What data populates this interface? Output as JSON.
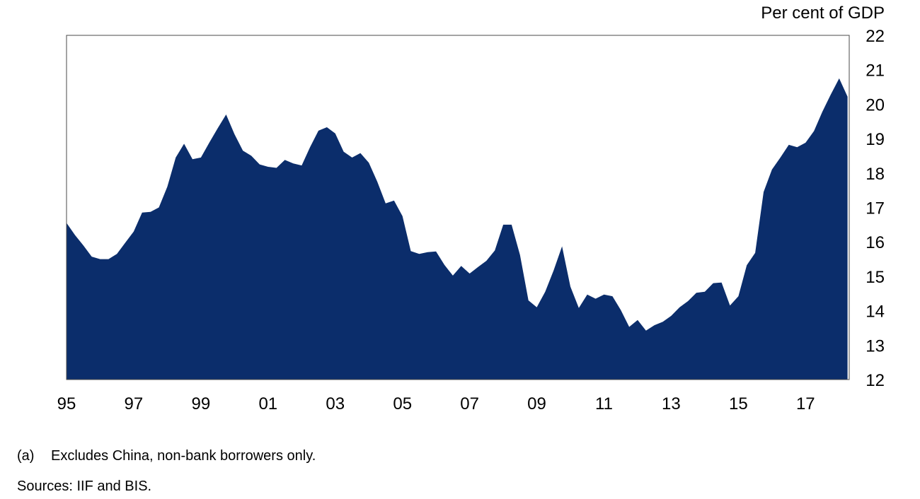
{
  "chart_data": {
    "type": "area",
    "ylabel": "Per cent of GDP",
    "ylim": [
      12,
      22
    ],
    "xlim": [
      1995.0,
      2018.3
    ],
    "y_ticks": [
      12,
      13,
      14,
      15,
      16,
      17,
      18,
      19,
      20,
      21,
      22
    ],
    "x_ticks": [
      {
        "value": 1995,
        "label": "95"
      },
      {
        "value": 1997,
        "label": "97"
      },
      {
        "value": 1999,
        "label": "99"
      },
      {
        "value": 2001,
        "label": "01"
      },
      {
        "value": 2003,
        "label": "03"
      },
      {
        "value": 2005,
        "label": "05"
      },
      {
        "value": 2007,
        "label": "07"
      },
      {
        "value": 2009,
        "label": "09"
      },
      {
        "value": 2011,
        "label": "11"
      },
      {
        "value": 2013,
        "label": "13"
      },
      {
        "value": 2015,
        "label": "15"
      },
      {
        "value": 2017,
        "label": "17"
      }
    ],
    "grid": false,
    "fill_color": "#0b2d6b",
    "series": [
      {
        "x": [
          1995.0,
          1995.25,
          1995.5,
          1995.75,
          1996.0,
          1996.25,
          1996.5,
          1996.75,
          1997.0,
          1997.25,
          1997.5,
          1997.75,
          1998.0,
          1998.25,
          1998.5,
          1998.75,
          1999.0,
          1999.25,
          1999.5,
          1999.75,
          2000.0,
          2000.25,
          2000.5,
          2000.75,
          2001.0,
          2001.25,
          2001.5,
          2001.75,
          2002.0,
          2002.25,
          2002.5,
          2002.75,
          2003.0,
          2003.25,
          2003.5,
          2003.75,
          2004.0,
          2004.25,
          2004.5,
          2004.75,
          2005.0,
          2005.25,
          2005.5,
          2005.75,
          2006.0,
          2006.25,
          2006.5,
          2006.75,
          2007.0,
          2007.25,
          2007.5,
          2007.75,
          2008.0,
          2008.25,
          2008.5,
          2008.75,
          2009.0,
          2009.25,
          2009.5,
          2009.75,
          2010.0,
          2010.25,
          2010.5,
          2010.75,
          2011.0,
          2011.25,
          2011.5,
          2011.75,
          2012.0,
          2012.25,
          2012.5,
          2012.75,
          2013.0,
          2013.25,
          2013.5,
          2013.75,
          2014.0,
          2014.25,
          2014.5,
          2014.75,
          2015.0,
          2015.25,
          2015.5,
          2015.75,
          2016.0,
          2016.25,
          2016.5,
          2016.75,
          2017.0,
          2017.25,
          2017.5,
          2017.75,
          2018.0,
          2018.25
        ],
        "values": [
          16.55,
          16.2,
          15.9,
          15.57,
          15.5,
          15.5,
          15.65,
          15.98,
          16.3,
          16.85,
          16.87,
          17.0,
          17.6,
          18.45,
          18.85,
          18.4,
          18.45,
          18.88,
          19.3,
          19.7,
          19.13,
          18.65,
          18.5,
          18.25,
          18.18,
          18.15,
          18.38,
          18.28,
          18.22,
          18.75,
          19.23,
          19.33,
          19.15,
          18.62,
          18.45,
          18.58,
          18.3,
          17.75,
          17.12,
          17.2,
          16.75,
          15.73,
          15.65,
          15.7,
          15.72,
          15.33,
          15.02,
          15.3,
          15.08,
          15.27,
          15.45,
          15.75,
          16.5,
          16.5,
          15.62,
          14.3,
          14.1,
          14.55,
          15.17,
          15.87,
          14.7,
          14.08,
          14.47,
          14.35,
          14.47,
          14.42,
          14.02,
          13.53,
          13.73,
          13.42,
          13.58,
          13.68,
          13.85,
          14.1,
          14.28,
          14.52,
          14.55,
          14.8,
          14.82,
          14.15,
          14.42,
          15.32,
          15.68,
          17.45,
          18.1,
          18.45,
          18.82,
          18.75,
          18.88,
          19.22,
          19.78,
          20.28,
          20.75,
          20.22
        ]
      }
    ]
  },
  "footnote": {
    "marker": "(a)",
    "text": "Excludes China, non-bank borrowers only."
  },
  "sources": "Sources: IIF and BIS."
}
